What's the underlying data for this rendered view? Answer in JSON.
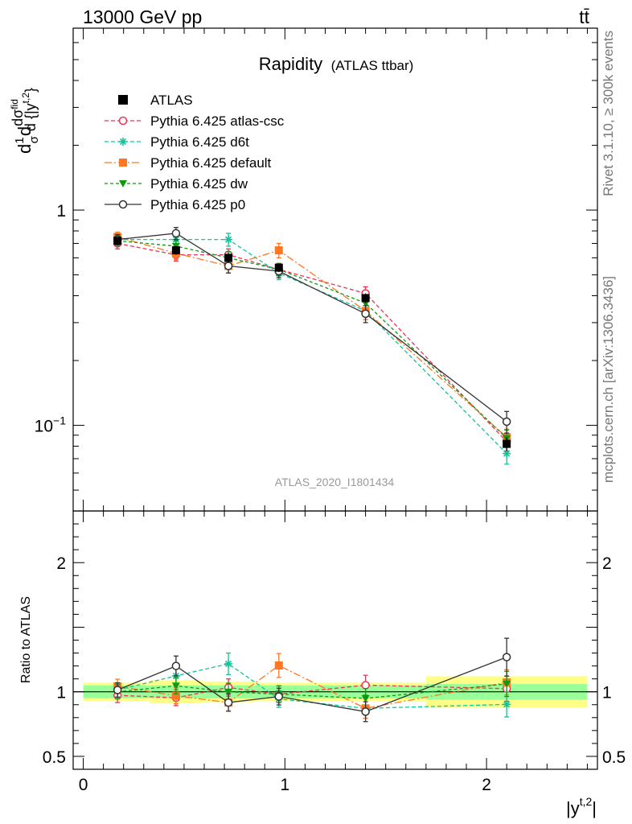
{
  "header": {
    "left": "13000 GeV pp",
    "right": "tt̄"
  },
  "side_labels": {
    "top": "Rivet 3.1.10, ≥ 300k events",
    "bottom": "mcplots.cern.ch [arXiv:1306.3436]"
  },
  "watermark": "ATLAS_2020_I1801434",
  "chart_data": {
    "type": "line",
    "title": "Rapidity",
    "subtitle": "(ATLAS ttbar)",
    "xlabel": "|y^{t,2}|",
    "xlabel_main": "|y",
    "xlabel_sup": "t,2",
    "xlabel_end": "|",
    "ylabel": "d(1/σ)dσ^{fid}/d{|y^{t,2}|}",
    "ylabel_parts": [
      "d",
      "1",
      "σ",
      "d",
      "dσ",
      "fid",
      "d {|y",
      "t,2",
      "}"
    ],
    "xlim": [
      -0.05,
      2.55
    ],
    "main_ylim": [
      0.04,
      7.0
    ],
    "main_yscale": "log",
    "main_yticks": [
      {
        "value": 1.0,
        "label": "1"
      },
      {
        "value": 0.1,
        "label": "10",
        "sup": "−1"
      }
    ],
    "xticks": [
      {
        "value": 0,
        "label": "0"
      },
      {
        "value": 1,
        "label": "1"
      },
      {
        "value": 2,
        "label": "2"
      }
    ],
    "ratio_ylabel": "Ratio to ATLAS",
    "ratio_ylim": [
      0.4,
      2.4
    ],
    "ratio_yticks": [
      {
        "value": 0.5,
        "label": "0.5"
      },
      {
        "value": 1,
        "label": "1"
      },
      {
        "value": 2,
        "label": "2"
      }
    ],
    "x": [
      0.17,
      0.46,
      0.72,
      0.97,
      1.4,
      2.1
    ],
    "bins": [
      [
        0.0,
        0.33
      ],
      [
        0.33,
        0.59
      ],
      [
        0.59,
        0.85
      ],
      [
        0.85,
        1.1
      ],
      [
        1.1,
        1.7
      ],
      [
        1.7,
        2.5
      ]
    ],
    "data": {
      "name": "ATLAS",
      "values": [
        0.72,
        0.65,
        0.6,
        0.54,
        0.39,
        0.082
      ],
      "errors": [
        0.03,
        0.03,
        0.03,
        0.025,
        0.02,
        0.006
      ],
      "band_stat": [
        0.05,
        0.05,
        0.05,
        0.05,
        0.05,
        0.06
      ],
      "band_total": [
        0.07,
        0.09,
        0.08,
        0.07,
        0.07,
        0.12
      ],
      "color": "#000000"
    },
    "series": [
      {
        "name": "Pythia 6.425 atlas-csc",
        "color": "#ee3355",
        "dash": "5,3",
        "marker": "open-circle",
        "values": [
          0.7,
          0.62,
          0.62,
          0.53,
          0.41,
          0.084
        ],
        "errors": [
          0.04,
          0.04,
          0.04,
          0.035,
          0.03,
          0.008
        ]
      },
      {
        "name": "Pythia 6.425 d6t",
        "color": "#11c49a",
        "dash": "5,3",
        "marker": "star",
        "values": [
          0.73,
          0.73,
          0.73,
          0.51,
          0.34,
          0.074
        ],
        "errors": [
          0.04,
          0.04,
          0.05,
          0.035,
          0.03,
          0.008
        ]
      },
      {
        "name": "Pythia 6.425 default",
        "color": "#ff7722",
        "dash": "9,3,2,3",
        "marker": "filled-square",
        "values": [
          0.75,
          0.63,
          0.55,
          0.65,
          0.34,
          0.088
        ],
        "errors": [
          0.04,
          0.04,
          0.04,
          0.05,
          0.03,
          0.008
        ]
      },
      {
        "name": "Pythia 6.425 dw",
        "color": "#119911",
        "dash": "4,3",
        "marker": "filled-triangle-down",
        "values": [
          0.72,
          0.68,
          0.6,
          0.53,
          0.37,
          0.087
        ],
        "errors": [
          0.04,
          0.04,
          0.04,
          0.035,
          0.03,
          0.008
        ]
      },
      {
        "name": "Pythia 6.425 p0",
        "color": "#333333",
        "dash": "",
        "marker": "open-circle",
        "values": [
          0.73,
          0.78,
          0.55,
          0.52,
          0.33,
          0.104
        ],
        "errors": [
          0.04,
          0.05,
          0.04,
          0.035,
          0.03,
          0.012
        ]
      }
    ],
    "colors": {
      "band_inner": "#99ff99",
      "band_outer": "#ffff88"
    }
  }
}
